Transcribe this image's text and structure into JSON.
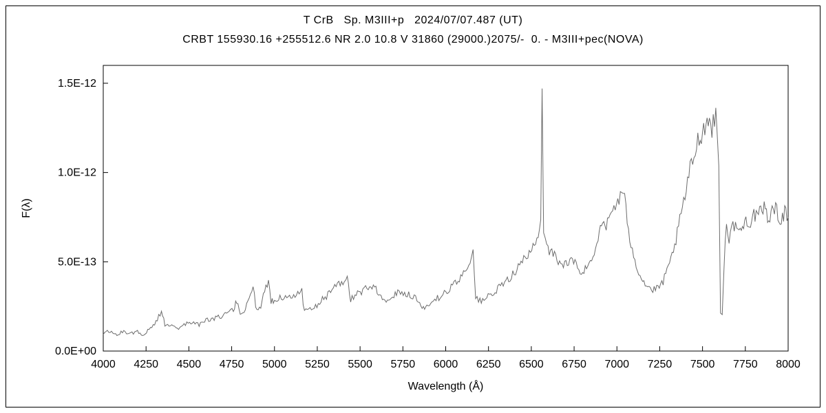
{
  "page": {
    "title_line1": "T CrB   Sp. M3III+p   2024/07/07.487 (UT)",
    "title_line2": "CRBT 155930.16 +255512.6 NR 2.0 10.8 V 31860 (29000.)2075/-  0. - M3III+pec(NOVA)"
  },
  "chart_data": {
    "type": "line",
    "title": "T CrB   Sp. M3III+p   2024/07/07.487 (UT)",
    "subtitle": "CRBT 155930.16 +255512.6 NR 2.0 10.8 V 31860 (29000.)2075/-  0. - M3III+pec(NOVA)",
    "xlabel": "Wavelength (Å)",
    "ylabel": "F(λ)",
    "xlim": [
      4000,
      8000
    ],
    "ylim_flux": [
      0,
      1.6e-12
    ],
    "flux_scale": 1e-13,
    "grid": false,
    "legend": "none",
    "line_color": "#6b6b6b",
    "axis_color": "#000000",
    "x_ticks": [
      4000,
      4250,
      4500,
      4750,
      5000,
      5250,
      5500,
      5750,
      6000,
      6250,
      6500,
      6750,
      7000,
      7250,
      7500,
      7750,
      8000
    ],
    "y_ticks": [
      {
        "value_e13": 0,
        "label": "0.0E+00"
      },
      {
        "value_e13": 5,
        "label": "5.0E-13"
      },
      {
        "value_e13": 10,
        "label": "1.0E-12"
      },
      {
        "value_e13": 15,
        "label": "1.5E-12"
      }
    ],
    "annotations": [
      {
        "x": 6563,
        "y_e13": 15.2,
        "note": "strong narrow emission peak (H-alpha), max 1.52E-12"
      },
      {
        "x": 7610,
        "y_e13": 2.0,
        "note": "deep narrow absorption band near 7600"
      }
    ],
    "noise_fraction": 0.05,
    "sample_step_angstrom": 8,
    "series": [
      {
        "name": "T CrB spectrum",
        "points_e13": [
          [
            4000,
            1.0
          ],
          [
            4040,
            1.1
          ],
          [
            4080,
            0.9
          ],
          [
            4120,
            1.1
          ],
          [
            4160,
            1.0
          ],
          [
            4200,
            1.1
          ],
          [
            4230,
            0.8
          ],
          [
            4260,
            1.2
          ],
          [
            4300,
            1.5
          ],
          [
            4340,
            2.2
          ],
          [
            4360,
            1.5
          ],
          [
            4400,
            1.5
          ],
          [
            4440,
            1.3
          ],
          [
            4480,
            1.5
          ],
          [
            4520,
            1.6
          ],
          [
            4560,
            1.5
          ],
          [
            4600,
            1.7
          ],
          [
            4640,
            1.8
          ],
          [
            4680,
            1.9
          ],
          [
            4720,
            2.1
          ],
          [
            4760,
            2.3
          ],
          [
            4780,
            2.8
          ],
          [
            4800,
            2.1
          ],
          [
            4830,
            2.3
          ],
          [
            4860,
            3.2
          ],
          [
            4875,
            3.8
          ],
          [
            4890,
            2.4
          ],
          [
            4920,
            2.5
          ],
          [
            4950,
            3.7
          ],
          [
            4965,
            3.9
          ],
          [
            4980,
            2.7
          ],
          [
            5000,
            2.9
          ],
          [
            5040,
            3.0
          ],
          [
            5080,
            3.1
          ],
          [
            5120,
            3.2
          ],
          [
            5160,
            3.3
          ],
          [
            5175,
            2.2
          ],
          [
            5200,
            2.3
          ],
          [
            5240,
            2.5
          ],
          [
            5280,
            2.9
          ],
          [
            5320,
            3.2
          ],
          [
            5360,
            3.6
          ],
          [
            5400,
            3.9
          ],
          [
            5425,
            4.1
          ],
          [
            5445,
            2.9
          ],
          [
            5470,
            3.1
          ],
          [
            5500,
            3.3
          ],
          [
            5540,
            3.6
          ],
          [
            5570,
            3.6
          ],
          [
            5600,
            3.4
          ],
          [
            5630,
            3.0
          ],
          [
            5660,
            2.8
          ],
          [
            5690,
            3.1
          ],
          [
            5720,
            3.3
          ],
          [
            5760,
            3.3
          ],
          [
            5800,
            3.1
          ],
          [
            5840,
            2.9
          ],
          [
            5870,
            2.4
          ],
          [
            5890,
            2.5
          ],
          [
            5920,
            2.7
          ],
          [
            5960,
            3.0
          ],
          [
            6000,
            3.3
          ],
          [
            6040,
            3.6
          ],
          [
            6080,
            4.1
          ],
          [
            6120,
            4.6
          ],
          [
            6150,
            5.3
          ],
          [
            6160,
            5.6
          ],
          [
            6175,
            3.0
          ],
          [
            6200,
            2.8
          ],
          [
            6240,
            3.0
          ],
          [
            6280,
            3.2
          ],
          [
            6320,
            3.6
          ],
          [
            6360,
            4.0
          ],
          [
            6400,
            4.4
          ],
          [
            6440,
            4.9
          ],
          [
            6480,
            5.4
          ],
          [
            6510,
            5.7
          ],
          [
            6540,
            6.2
          ],
          [
            6555,
            7.5
          ],
          [
            6563,
            15.2
          ],
          [
            6572,
            7.0
          ],
          [
            6590,
            5.9
          ],
          [
            6620,
            5.5
          ],
          [
            6650,
            5.2
          ],
          [
            6680,
            4.8
          ],
          [
            6710,
            4.9
          ],
          [
            6740,
            5.1
          ],
          [
            6770,
            4.7
          ],
          [
            6800,
            4.3
          ],
          [
            6830,
            4.8
          ],
          [
            6860,
            5.4
          ],
          [
            6890,
            6.3
          ],
          [
            6910,
            7.4
          ],
          [
            6930,
            6.7
          ],
          [
            6960,
            7.6
          ],
          [
            6990,
            8.2
          ],
          [
            7020,
            8.6
          ],
          [
            7045,
            9.0
          ],
          [
            7060,
            6.8
          ],
          [
            7090,
            5.8
          ],
          [
            7120,
            4.6
          ],
          [
            7150,
            4.0
          ],
          [
            7180,
            3.6
          ],
          [
            7210,
            3.4
          ],
          [
            7240,
            3.5
          ],
          [
            7270,
            3.9
          ],
          [
            7300,
            4.6
          ],
          [
            7330,
            5.6
          ],
          [
            7360,
            6.9
          ],
          [
            7390,
            8.3
          ],
          [
            7420,
            9.8
          ],
          [
            7450,
            11.0
          ],
          [
            7480,
            12.0
          ],
          [
            7500,
            12.4
          ],
          [
            7520,
            12.7
          ],
          [
            7540,
            13.0
          ],
          [
            7555,
            12.6
          ],
          [
            7570,
            13.1
          ],
          [
            7585,
            12.8
          ],
          [
            7595,
            10.0
          ],
          [
            7605,
            2.2
          ],
          [
            7615,
            2.0
          ],
          [
            7625,
            4.8
          ],
          [
            7640,
            7.3
          ],
          [
            7655,
            6.2
          ],
          [
            7670,
            6.8
          ],
          [
            7685,
            7.1
          ],
          [
            7700,
            7.0
          ],
          [
            7720,
            6.6
          ],
          [
            7740,
            7.1
          ],
          [
            7760,
            7.4
          ],
          [
            7780,
            7.2
          ],
          [
            7800,
            7.7
          ],
          [
            7820,
            7.4
          ],
          [
            7840,
            7.8
          ],
          [
            7860,
            8.0
          ],
          [
            7880,
            7.5
          ],
          [
            7900,
            7.7
          ],
          [
            7920,
            8.1
          ],
          [
            7940,
            7.6
          ],
          [
            7960,
            7.4
          ],
          [
            7980,
            7.8
          ],
          [
            8000,
            7.5
          ]
        ]
      }
    ]
  }
}
